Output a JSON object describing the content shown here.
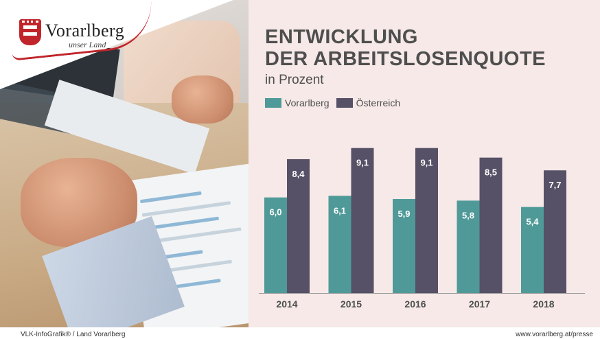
{
  "logo": {
    "name": "Vorarlberg",
    "tagline": "unser Land"
  },
  "title_line1": "ENTWICKLUNG",
  "title_line2": "DER ARBEITSLOSENQUOTE",
  "subtitle": "in Prozent",
  "footer": {
    "left": "VLK-InfoGrafik®   /   Land Vorarlberg",
    "right": "www.vorarlberg.at/presse"
  },
  "colors": {
    "vorarlberg": "#4f9a98",
    "oesterreich": "#575167",
    "panel_bg": "#f6e9e8",
    "logo_red": "#c0252b"
  },
  "chart_data": {
    "type": "bar",
    "title": "ENTWICKLUNG DER ARBEITSLOSENQUOTE",
    "subtitle": "in Prozent",
    "categories": [
      "2014",
      "2015",
      "2016",
      "2017",
      "2018"
    ],
    "series": [
      {
        "name": "Vorarlberg",
        "values": [
          6.0,
          6.1,
          5.9,
          5.8,
          5.4
        ],
        "labels": [
          "6,0",
          "6,1",
          "5,9",
          "5,8",
          "5,4"
        ]
      },
      {
        "name": "Österreich",
        "values": [
          8.4,
          9.1,
          9.1,
          8.5,
          7.7
        ],
        "labels": [
          "8,4",
          "9,1",
          "9,1",
          "8,5",
          "7,7"
        ]
      }
    ],
    "legend_position": "top-left",
    "grid": false,
    "ylim": [
      0,
      11.5
    ]
  }
}
